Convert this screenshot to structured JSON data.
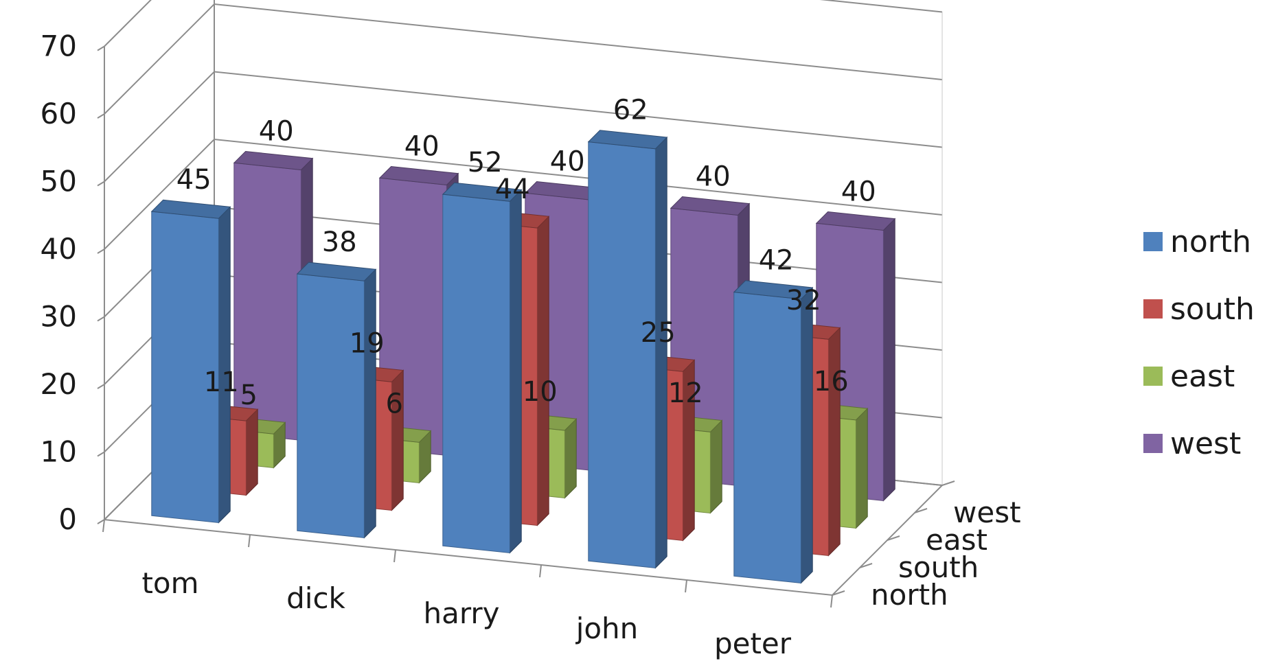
{
  "chart_data": {
    "type": "bar",
    "subtype": "3d-column",
    "categories": [
      "tom",
      "dick",
      "harry",
      "john",
      "peter"
    ],
    "series": [
      {
        "name": "north",
        "color": "#4f81bd",
        "values": [
          45,
          38,
          52,
          62,
          42
        ]
      },
      {
        "name": "south",
        "color": "#c0504d",
        "values": [
          11,
          19,
          44,
          25,
          32
        ]
      },
      {
        "name": "east",
        "color": "#9bbb59",
        "values": [
          5,
          6,
          10,
          12,
          16
        ]
      },
      {
        "name": "west",
        "color": "#8064a2",
        "values": [
          40,
          40,
          40,
          40,
          40
        ]
      }
    ],
    "y_ticks": [
      "0",
      "10",
      "20",
      "30",
      "40",
      "50",
      "60",
      "70"
    ],
    "ylim": [
      0,
      70
    ],
    "grid": true,
    "legend": "right"
  }
}
